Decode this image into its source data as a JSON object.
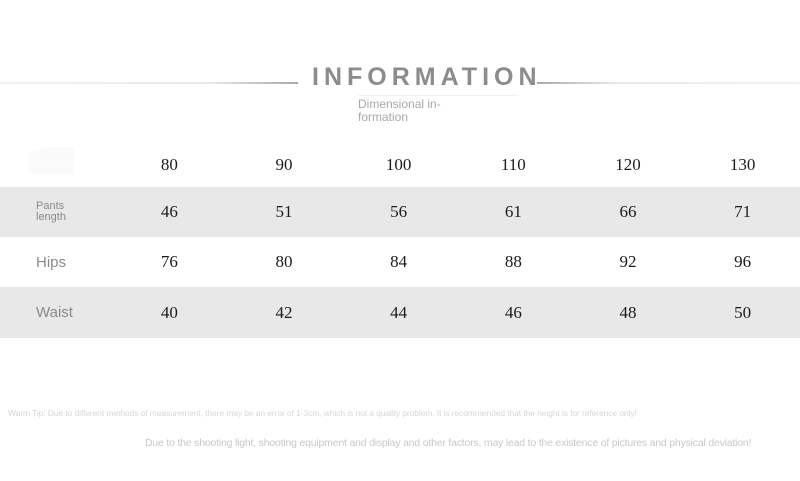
{
  "header": {
    "title": "INFORMATION",
    "subtitle_line1": "Dimensional in-",
    "subtitle_line2": "formation"
  },
  "size_table": {
    "columns": [
      "80",
      "90",
      "100",
      "110",
      "120",
      "130"
    ],
    "rows": [
      {
        "label": "Pants length",
        "values": [
          "46",
          "51",
          "56",
          "61",
          "66",
          "71"
        ]
      },
      {
        "label": "Hips",
        "values": [
          "76",
          "80",
          "84",
          "88",
          "92",
          "96"
        ]
      },
      {
        "label": "Waist",
        "values": [
          "40",
          "42",
          "44",
          "46",
          "48",
          "50"
        ]
      }
    ]
  },
  "footnotes": {
    "warm_tip": "Warm Tip: Due to different methods of measurement, there may be an error of 1-3cm, which is not a quality problem. It is recommended that the height is for reference only!",
    "deviation_note": "Due to the shooting light, shooting equipment and display and other factors, may lead to the existence of pictures and physical deviation!"
  },
  "colors": {
    "title_text": "#8c8c8c",
    "subtitle_text": "#a8a8a8",
    "stripe_row": "#e8e8e8",
    "number_text": "#1b1b1b",
    "row_label_text": "#8a8a8a",
    "warm_tip_text": "#d7d7d7",
    "deviation_note_text": "#c8c8c8",
    "divider_dark": "#a9a9a9",
    "divider_light": "#f2f2f2"
  }
}
